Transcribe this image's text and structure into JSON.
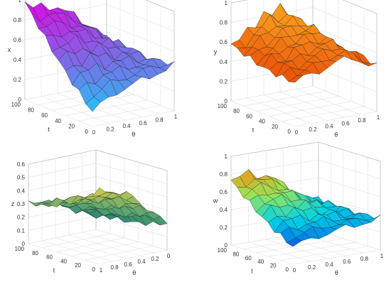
{
  "chart_data": [
    {
      "type": "surface",
      "colormap": "cool",
      "title": "",
      "xlabel": "θ",
      "ylabel": "t",
      "zlabel": "x",
      "xlim": [
        0,
        1
      ],
      "ylim": [
        0,
        100
      ],
      "zlim": [
        0,
        1
      ],
      "xticks": [
        "0",
        "0.2",
        "0.4",
        "0.6",
        "0.8",
        "1"
      ],
      "yticks": [
        "0",
        "20",
        "40",
        "60",
        "80",
        "100"
      ],
      "zticks": [
        "0",
        "0.2",
        "0.4",
        "0.6",
        "0.8",
        "1"
      ],
      "theta": [
        0,
        0.1,
        0.2,
        0.3,
        0.4,
        0.5,
        0.6,
        0.7,
        0.8,
        0.9,
        1.0
      ],
      "t": [
        0,
        10,
        20,
        30,
        40,
        50,
        60,
        70,
        80,
        90,
        100
      ],
      "z_at_t0": [
        0.15,
        0.2,
        0.25,
        0.3,
        0.32,
        0.34,
        0.36,
        0.38,
        0.4,
        0.42,
        0.45
      ],
      "z_at_t100": [
        0.95,
        0.9,
        0.92,
        0.9,
        0.86,
        0.82,
        0.78,
        0.72,
        0.65,
        0.55,
        0.45
      ],
      "z_at_theta1": [
        0.45,
        0.46,
        0.46,
        0.46,
        0.46,
        0.46,
        0.46,
        0.46,
        0.46,
        0.46,
        0.45
      ],
      "grid": true,
      "legend": "none"
    },
    {
      "type": "surface",
      "colormap": "autumn",
      "title": "",
      "xlabel": "θ",
      "ylabel": "t",
      "zlabel": "y",
      "xlim": [
        0,
        1
      ],
      "ylim": [
        0,
        100
      ],
      "zlim": [
        0,
        1
      ],
      "xticks": [
        "0",
        "0.2",
        "0.4",
        "0.6",
        "0.8",
        "1"
      ],
      "yticks": [
        "0",
        "20",
        "40",
        "60",
        "80",
        "100"
      ],
      "zticks": [
        "0",
        "0.2",
        "0.4",
        "0.6",
        "0.8",
        "1"
      ],
      "theta": [
        0,
        0.1,
        0.2,
        0.3,
        0.4,
        0.5,
        0.6,
        0.7,
        0.8,
        0.9,
        1.0
      ],
      "t": [
        0,
        10,
        20,
        30,
        40,
        50,
        60,
        70,
        80,
        90,
        100
      ],
      "z_at_t0": [
        0.45,
        0.48,
        0.5,
        0.52,
        0.55,
        0.58,
        0.6,
        0.62,
        0.58,
        0.52,
        0.45
      ],
      "z_at_t100": [
        0.55,
        0.6,
        0.7,
        0.75,
        0.85,
        0.8,
        0.9,
        0.85,
        0.75,
        0.6,
        0.5
      ],
      "z_at_theta1": [
        0.45,
        0.5,
        0.55,
        0.5,
        0.48,
        0.5,
        0.52,
        0.5,
        0.48,
        0.5,
        0.5
      ],
      "grid": true,
      "legend": "none"
    },
    {
      "type": "surface",
      "colormap": "summer",
      "title": "",
      "xlabel": "θ",
      "ylabel": "t",
      "zlabel": "z",
      "xlim": [
        0,
        1
      ],
      "ylim": [
        0,
        100
      ],
      "zlim": [
        0,
        0.6
      ],
      "xticks": [
        "1",
        "0.8",
        "0.6",
        "0.4",
        "0.2",
        "0"
      ],
      "yticks": [
        "0",
        "20",
        "40",
        "60",
        "80",
        "100"
      ],
      "zticks": [
        "0",
        "0.1",
        "0.2",
        "0.3",
        "0.4",
        "0.5",
        "0.6"
      ],
      "theta": [
        0,
        0.1,
        0.2,
        0.3,
        0.4,
        0.5,
        0.6,
        0.7,
        0.8,
        0.9,
        1.0
      ],
      "t": [
        0,
        10,
        20,
        30,
        40,
        50,
        60,
        70,
        80,
        90,
        100
      ],
      "z_at_t0": [
        0.2,
        0.25,
        0.3,
        0.35,
        0.4,
        0.45,
        0.48,
        0.5,
        0.52,
        0.53,
        0.55
      ],
      "z_at_t100": [
        0.1,
        0.12,
        0.15,
        0.18,
        0.2,
        0.22,
        0.25,
        0.26,
        0.28,
        0.29,
        0.3
      ],
      "z_at_theta1": [
        0.55,
        0.5,
        0.45,
        0.42,
        0.4,
        0.38,
        0.35,
        0.33,
        0.32,
        0.31,
        0.3
      ],
      "grid": true,
      "legend": "none"
    },
    {
      "type": "surface",
      "colormap": "jet",
      "title": "",
      "xlabel": "θ",
      "ylabel": "t",
      "zlabel": "w",
      "xlim": [
        0,
        1
      ],
      "ylim": [
        0,
        100
      ],
      "zlim": [
        0,
        1
      ],
      "xticks": [
        "0",
        "0.2",
        "0.4",
        "0.6",
        "0.8",
        "1"
      ],
      "yticks": [
        "0",
        "20",
        "40",
        "60",
        "80",
        "100"
      ],
      "zticks": [
        "0",
        "0.2",
        "0.4",
        "0.6",
        "0.8",
        "1"
      ],
      "theta": [
        0,
        0.1,
        0.2,
        0.3,
        0.4,
        0.5,
        0.6,
        0.7,
        0.8,
        0.9,
        1.0
      ],
      "t": [
        0,
        10,
        20,
        30,
        40,
        50,
        60,
        70,
        80,
        90,
        100
      ],
      "z_at_t0": [
        0.2,
        0.22,
        0.25,
        0.27,
        0.28,
        0.3,
        0.31,
        0.32,
        0.33,
        0.34,
        0.35
      ],
      "z_at_t100": [
        0.7,
        0.75,
        0.8,
        0.75,
        0.72,
        0.68,
        0.6,
        0.52,
        0.45,
        0.4,
        0.35
      ],
      "z_at_theta1": [
        0.35,
        0.36,
        0.36,
        0.36,
        0.36,
        0.36,
        0.36,
        0.36,
        0.36,
        0.36,
        0.35
      ],
      "grid": true,
      "legend": "none"
    }
  ]
}
